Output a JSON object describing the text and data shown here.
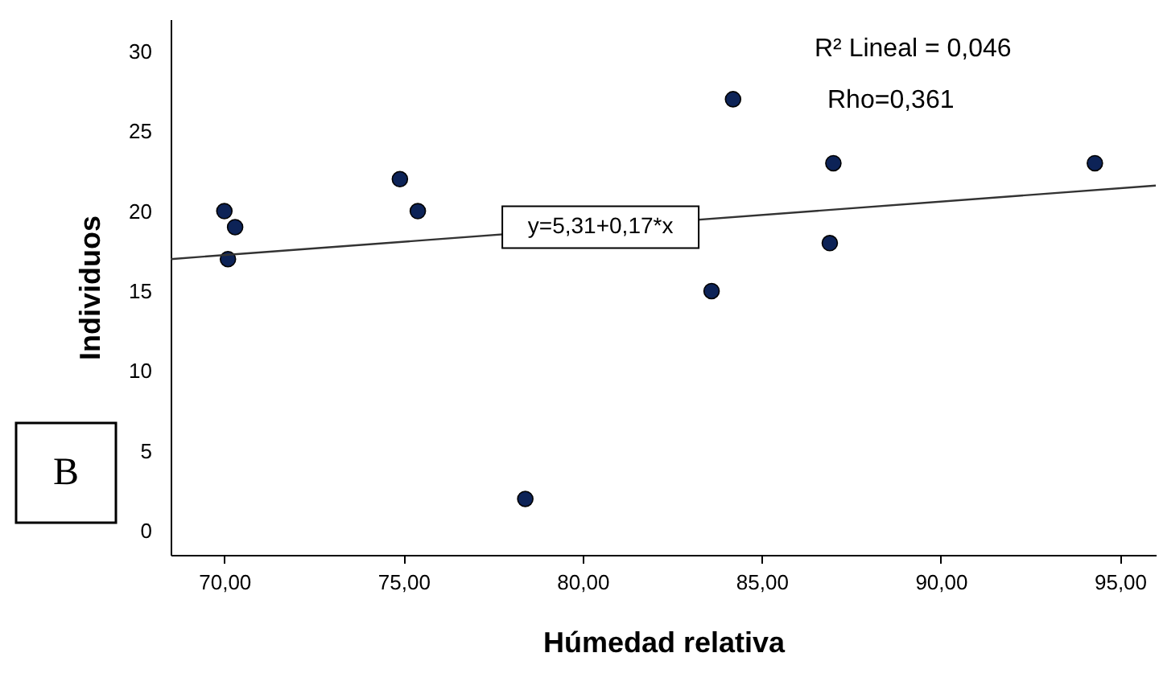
{
  "chart_data": {
    "type": "scatter",
    "xlabel": "Húmedad relativa",
    "ylabel": "Individuos",
    "series": [
      {
        "marker": "circle",
        "color": "#0d2357",
        "x": [
          70.0,
          70.3,
          70.1,
          74.9,
          75.4,
          78.4,
          84.2,
          83.6,
          87.0,
          86.9,
          94.3
        ],
        "values": [
          20,
          19,
          17,
          22,
          20,
          2,
          27,
          15,
          23,
          18,
          23
        ]
      },
      {
        "type": "line",
        "color": "#333333",
        "x": [
          68.5,
          96
        ],
        "values": [
          17.0,
          21.6
        ]
      }
    ],
    "xlim": [
      68.5,
      96
    ],
    "xticks": [
      {
        "value": 70,
        "label": "70,00"
      },
      {
        "value": 75,
        "label": "75,00"
      },
      {
        "value": 80,
        "label": "80,00"
      },
      {
        "value": 85,
        "label": "85,00"
      },
      {
        "value": 90,
        "label": "90,00"
      },
      {
        "value": 95,
        "label": "95,00"
      }
    ],
    "ylim": [
      -1.5,
      32
    ],
    "yticks": [
      0,
      5,
      10,
      15,
      20,
      25,
      30
    ],
    "grid": false,
    "annotations": [
      "R² Lineal = 0,046",
      "Rho=0,361",
      {
        "text": "y=5,31+0,17*x",
        "x": 80.5,
        "y": 19
      },
      "B"
    ]
  }
}
